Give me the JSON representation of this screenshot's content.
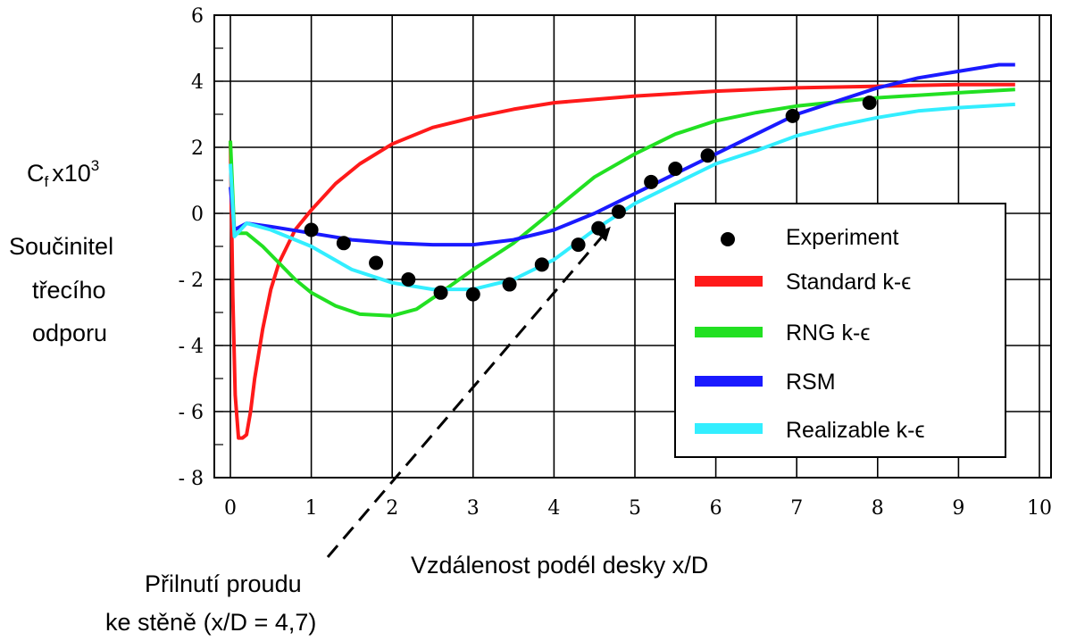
{
  "chart_data": {
    "type": "line",
    "ylabel_symbol": "C",
    "ylabel_subscript": "f",
    "ylabel_multiplier": "x10",
    "ylabel_exponent": "3",
    "ylabel_desc": [
      "Součinitel",
      "třecího",
      "odporu"
    ],
    "xlabel": "Vzdálenost podél desky x/D",
    "xlim": [
      0,
      10
    ],
    "ylim": [
      -8,
      6
    ],
    "xticks": [
      "0",
      "1",
      "2",
      "3",
      "4",
      "5",
      "6",
      "7",
      "8",
      "9",
      "10"
    ],
    "yticks": [
      "6",
      "4",
      "2",
      "0",
      "- 2",
      "- 4",
      "- 6",
      "- 8"
    ],
    "grid": true,
    "legend_position": "right",
    "annotation": {
      "lines": [
        "Přilnutí proudu",
        "ke stěně (x/D = 4,7)"
      ],
      "x": 4.7,
      "y": -0.4
    },
    "series": [
      {
        "name": "Standard k-ϵ",
        "color": "#ff1a1a",
        "x": [
          0,
          0.03,
          0.06,
          0.1,
          0.15,
          0.2,
          0.25,
          0.3,
          0.4,
          0.5,
          0.6,
          0.8,
          1.0,
          1.3,
          1.6,
          2.0,
          2.5,
          3.0,
          3.5,
          4.0,
          5.0,
          6.0,
          7.0,
          8.0,
          9.0,
          9.7
        ],
        "y": [
          2.2,
          -2.5,
          -5.5,
          -6.8,
          -6.8,
          -6.7,
          -6.0,
          -5.0,
          -3.5,
          -2.3,
          -1.5,
          -0.5,
          0.1,
          0.9,
          1.5,
          2.1,
          2.6,
          2.9,
          3.15,
          3.35,
          3.55,
          3.7,
          3.8,
          3.85,
          3.9,
          3.9
        ]
      },
      {
        "name": "RNG k-ϵ",
        "color": "#22e022",
        "x": [
          0,
          0.05,
          0.2,
          0.4,
          0.6,
          0.8,
          1.0,
          1.3,
          1.6,
          2.0,
          2.3,
          2.6,
          3.0,
          3.5,
          4.0,
          4.5,
          5.0,
          5.5,
          6.0,
          6.5,
          7.0,
          8.0,
          9.0,
          9.7
        ],
        "y": [
          2.2,
          -0.6,
          -0.6,
          -1.0,
          -1.5,
          -2.0,
          -2.4,
          -2.8,
          -3.05,
          -3.1,
          -2.9,
          -2.4,
          -1.7,
          -0.9,
          0.1,
          1.1,
          1.8,
          2.4,
          2.8,
          3.05,
          3.25,
          3.5,
          3.65,
          3.75
        ]
      },
      {
        "name": "RSM",
        "color": "#1a1aff",
        "x": [
          0,
          0.05,
          0.2,
          0.5,
          1.0,
          1.5,
          2.0,
          2.5,
          3.0,
          3.5,
          4.0,
          4.5,
          5.0,
          5.5,
          6.0,
          6.5,
          7.0,
          7.5,
          8.0,
          8.5,
          9.0,
          9.5,
          9.7
        ],
        "y": [
          0.8,
          -0.5,
          -0.3,
          -0.4,
          -0.6,
          -0.8,
          -0.9,
          -0.95,
          -0.95,
          -0.8,
          -0.5,
          0.0,
          0.6,
          1.2,
          1.8,
          2.4,
          3.0,
          3.4,
          3.8,
          4.1,
          4.3,
          4.5,
          4.5
        ]
      },
      {
        "name": "Realizable k-ϵ",
        "color": "#33eeff",
        "x": [
          0,
          0.05,
          0.2,
          0.5,
          1.0,
          1.5,
          2.0,
          2.5,
          3.0,
          3.5,
          4.0,
          4.5,
          5.0,
          5.5,
          6.0,
          6.5,
          7.0,
          7.5,
          8.0,
          8.5,
          9.0,
          9.7
        ],
        "y": [
          1.5,
          -0.7,
          -0.3,
          -0.5,
          -1.0,
          -1.7,
          -2.1,
          -2.3,
          -2.3,
          -2.0,
          -1.4,
          -0.5,
          0.3,
          0.9,
          1.5,
          1.9,
          2.35,
          2.65,
          2.9,
          3.1,
          3.2,
          3.3
        ]
      }
    ],
    "experiment": {
      "name": "Experiment",
      "color": "#000000",
      "x": [
        1.0,
        1.4,
        1.8,
        2.2,
        2.6,
        3.0,
        3.45,
        3.85,
        4.3,
        4.55,
        4.8,
        5.2,
        5.5,
        5.9,
        6.95,
        7.9
      ],
      "y": [
        -0.5,
        -0.9,
        -1.5,
        -2.0,
        -2.4,
        -2.45,
        -2.15,
        -1.55,
        -0.95,
        -0.45,
        0.05,
        0.95,
        1.35,
        1.75,
        2.95,
        3.35
      ]
    }
  }
}
